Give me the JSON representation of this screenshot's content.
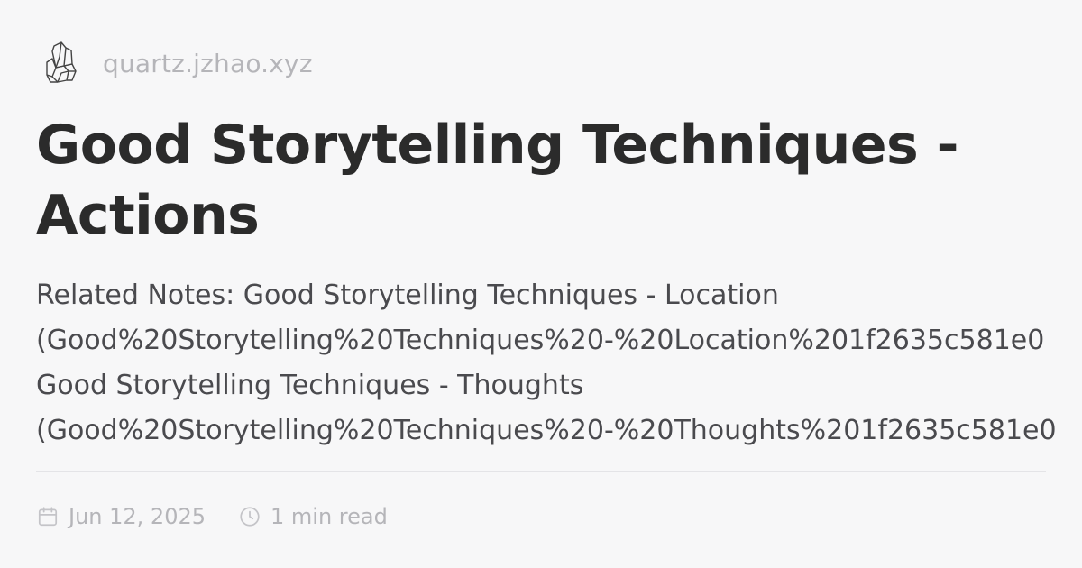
{
  "header": {
    "logo_icon": "crystal-cluster-icon",
    "site_name": "quartz.jzhao.xyz"
  },
  "page": {
    "title": "Good Storytelling Techniques - Actions",
    "description_lines": [
      "Related Notes: Good Storytelling Techniques - Location",
      "(Good%20Storytelling%20Techniques%20-%20Location%201f2635c581e0",
      "Good Storytelling Techniques - Thoughts",
      "(Good%20Storytelling%20Techniques%20-%20Thoughts%201f2635c581e0"
    ]
  },
  "meta": {
    "date_icon": "calendar-icon",
    "date": "Jun 12, 2025",
    "reading_time_icon": "clock-icon",
    "reading_time": "1 min read"
  },
  "colors": {
    "background": "#f7f7f8",
    "title": "#2b2b2b",
    "body_text": "#4a4a4e",
    "muted": "#b5b5b9",
    "divider": "#e4e4e7"
  }
}
